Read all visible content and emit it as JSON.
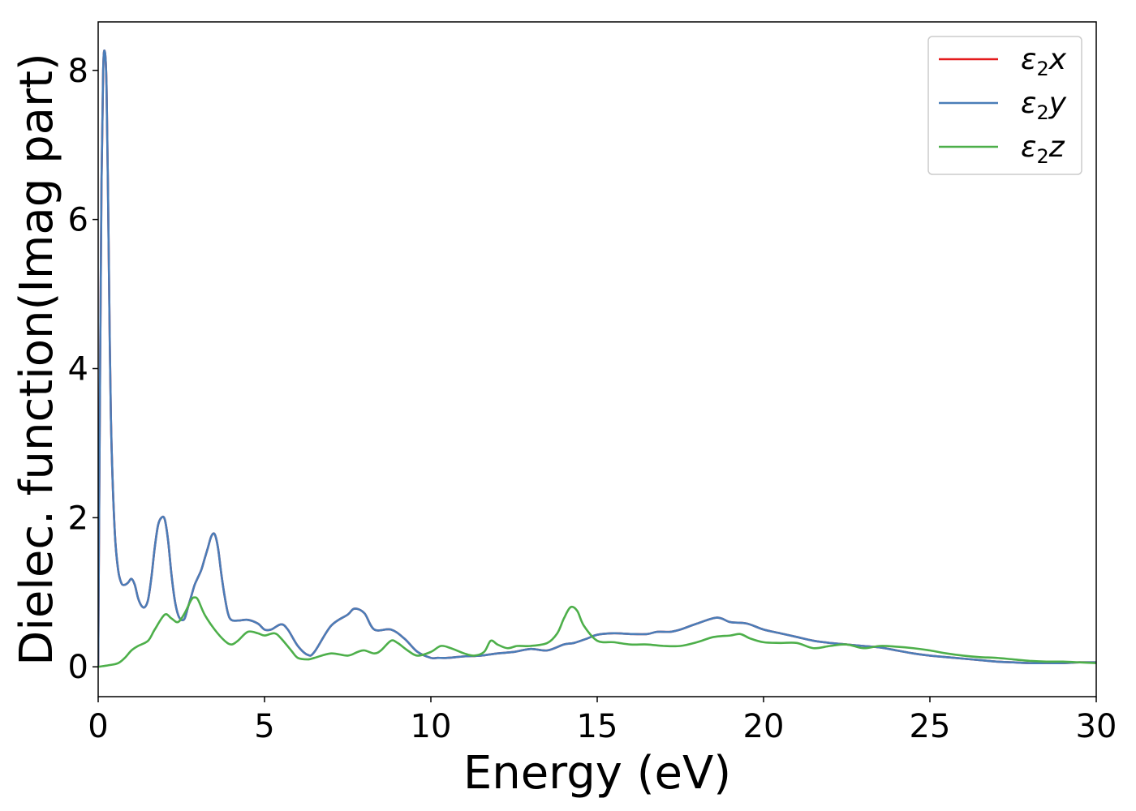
{
  "chart_data": {
    "type": "line",
    "title": "",
    "xlabel": "Energy (eV)",
    "ylabel": "Dielec. function(Imag part)",
    "xlim": [
      0,
      30
    ],
    "ylim": [
      -0.4,
      8.65
    ],
    "xticks": [
      0,
      5,
      10,
      15,
      20,
      25,
      30
    ],
    "yticks": [
      0,
      2,
      4,
      6,
      8
    ],
    "grid": false,
    "legend_position": "top-right",
    "series": [
      {
        "name": "ε2x",
        "legend_symbol": "ε",
        "legend_sub": "2",
        "legend_var": "x",
        "color": "#e41a1c",
        "x": [
          0,
          0.05,
          0.1,
          0.15,
          0.2,
          0.25,
          0.3,
          0.35,
          0.4,
          0.5,
          0.6,
          0.7,
          0.8,
          0.9,
          1.0,
          1.1,
          1.2,
          1.3,
          1.4,
          1.5,
          1.6,
          1.7,
          1.8,
          1.9,
          2.0,
          2.1,
          2.2,
          2.3,
          2.4,
          2.5,
          2.6,
          2.7,
          2.8,
          2.9,
          3.0,
          3.1,
          3.2,
          3.3,
          3.4,
          3.5,
          3.6,
          3.7,
          3.8,
          3.9,
          4.0,
          4.2,
          4.5,
          4.8,
          5.0,
          5.2,
          5.5,
          5.7,
          6.0,
          6.3,
          6.5,
          7.0,
          7.5,
          7.7,
          8.0,
          8.3,
          8.8,
          9.2,
          9.6,
          10.0,
          10.2,
          10.5,
          11.0,
          11.5,
          12.0,
          12.5,
          13.0,
          13.5,
          14.0,
          14.3,
          14.7,
          15.0,
          15.5,
          16.0,
          16.5,
          16.8,
          17.2,
          17.5,
          18.0,
          18.6,
          19.0,
          19.5,
          20.0,
          20.5,
          21.0,
          21.5,
          22.0,
          22.5,
          23.0,
          23.5,
          24.0,
          24.5,
          25.0,
          25.5,
          26.0,
          26.5,
          27.0,
          27.5,
          28.0,
          28.5,
          29.0,
          29.5,
          30.0
        ],
        "y": [
          0.0,
          3.5,
          6.5,
          8.0,
          8.25,
          7.8,
          6.2,
          4.3,
          3.0,
          1.8,
          1.3,
          1.12,
          1.1,
          1.13,
          1.18,
          1.1,
          0.92,
          0.82,
          0.8,
          0.9,
          1.2,
          1.6,
          1.9,
          2.0,
          1.98,
          1.7,
          1.25,
          0.9,
          0.7,
          0.63,
          0.65,
          0.8,
          0.95,
          1.1,
          1.2,
          1.3,
          1.45,
          1.6,
          1.75,
          1.78,
          1.6,
          1.25,
          0.95,
          0.72,
          0.63,
          0.62,
          0.63,
          0.58,
          0.5,
          0.5,
          0.57,
          0.5,
          0.28,
          0.16,
          0.2,
          0.55,
          0.7,
          0.78,
          0.72,
          0.5,
          0.5,
          0.38,
          0.2,
          0.12,
          0.12,
          0.12,
          0.14,
          0.15,
          0.18,
          0.2,
          0.24,
          0.22,
          0.3,
          0.32,
          0.38,
          0.43,
          0.45,
          0.44,
          0.44,
          0.47,
          0.47,
          0.5,
          0.58,
          0.66,
          0.6,
          0.58,
          0.5,
          0.45,
          0.4,
          0.35,
          0.32,
          0.3,
          0.28,
          0.26,
          0.22,
          0.18,
          0.15,
          0.13,
          0.11,
          0.09,
          0.07,
          0.06,
          0.05,
          0.05,
          0.05,
          0.06,
          0.06
        ]
      },
      {
        "name": "ε2y",
        "legend_symbol": "ε",
        "legend_sub": "2",
        "legend_var": "y",
        "color": "#4a7db8",
        "x": [
          0,
          0.05,
          0.1,
          0.15,
          0.2,
          0.25,
          0.3,
          0.35,
          0.4,
          0.5,
          0.6,
          0.7,
          0.8,
          0.9,
          1.0,
          1.1,
          1.2,
          1.3,
          1.4,
          1.5,
          1.6,
          1.7,
          1.8,
          1.9,
          2.0,
          2.1,
          2.2,
          2.3,
          2.4,
          2.5,
          2.6,
          2.7,
          2.8,
          2.9,
          3.0,
          3.1,
          3.2,
          3.3,
          3.4,
          3.5,
          3.6,
          3.7,
          3.8,
          3.9,
          4.0,
          4.2,
          4.5,
          4.8,
          5.0,
          5.2,
          5.5,
          5.7,
          6.0,
          6.3,
          6.5,
          7.0,
          7.5,
          7.7,
          8.0,
          8.3,
          8.8,
          9.2,
          9.6,
          10.0,
          10.2,
          10.5,
          11.0,
          11.5,
          12.0,
          12.5,
          13.0,
          13.5,
          14.0,
          14.3,
          14.7,
          15.0,
          15.5,
          16.0,
          16.5,
          16.8,
          17.2,
          17.5,
          18.0,
          18.6,
          19.0,
          19.5,
          20.0,
          20.5,
          21.0,
          21.5,
          22.0,
          22.5,
          23.0,
          23.5,
          24.0,
          24.5,
          25.0,
          25.5,
          26.0,
          26.5,
          27.0,
          27.5,
          28.0,
          28.5,
          29.0,
          29.5,
          30.0
        ],
        "y": [
          0.0,
          3.5,
          6.5,
          8.0,
          8.25,
          7.8,
          6.2,
          4.3,
          3.0,
          1.8,
          1.3,
          1.12,
          1.1,
          1.13,
          1.18,
          1.1,
          0.92,
          0.82,
          0.8,
          0.9,
          1.2,
          1.6,
          1.9,
          2.0,
          1.98,
          1.7,
          1.25,
          0.9,
          0.7,
          0.63,
          0.65,
          0.8,
          0.95,
          1.1,
          1.2,
          1.3,
          1.45,
          1.6,
          1.75,
          1.78,
          1.6,
          1.25,
          0.95,
          0.72,
          0.63,
          0.62,
          0.63,
          0.58,
          0.5,
          0.5,
          0.57,
          0.5,
          0.28,
          0.16,
          0.2,
          0.55,
          0.7,
          0.78,
          0.72,
          0.5,
          0.5,
          0.38,
          0.2,
          0.12,
          0.12,
          0.12,
          0.14,
          0.15,
          0.18,
          0.2,
          0.24,
          0.22,
          0.3,
          0.32,
          0.38,
          0.43,
          0.45,
          0.44,
          0.44,
          0.47,
          0.47,
          0.5,
          0.58,
          0.66,
          0.6,
          0.58,
          0.5,
          0.45,
          0.4,
          0.35,
          0.32,
          0.3,
          0.28,
          0.26,
          0.22,
          0.18,
          0.15,
          0.13,
          0.11,
          0.09,
          0.07,
          0.06,
          0.05,
          0.05,
          0.05,
          0.06,
          0.06
        ]
      },
      {
        "name": "ε2z",
        "legend_symbol": "ε",
        "legend_sub": "2",
        "legend_var": "z",
        "color": "#4daf4a",
        "x": [
          0,
          0.3,
          0.6,
          0.8,
          1.0,
          1.2,
          1.5,
          1.7,
          2.0,
          2.2,
          2.4,
          2.6,
          2.8,
          2.9,
          3.0,
          3.2,
          3.5,
          3.8,
          4.0,
          4.2,
          4.5,
          4.8,
          5.0,
          5.3,
          5.5,
          5.8,
          6.0,
          6.3,
          6.5,
          7.0,
          7.5,
          7.8,
          8.0,
          8.3,
          8.5,
          8.8,
          9.0,
          9.3,
          9.6,
          10.0,
          10.3,
          10.6,
          11.0,
          11.3,
          11.6,
          11.8,
          12.0,
          12.3,
          12.6,
          13.0,
          13.5,
          13.8,
          14.0,
          14.2,
          14.4,
          14.6,
          15.0,
          15.5,
          16.0,
          16.5,
          17.0,
          17.5,
          18.0,
          18.5,
          19.0,
          19.3,
          19.6,
          20.0,
          20.5,
          21.0,
          21.5,
          22.0,
          22.5,
          23.0,
          23.5,
          24.0,
          24.5,
          25.0,
          25.5,
          26.0,
          26.5,
          27.0,
          27.5,
          28.0,
          28.5,
          29.0,
          29.5,
          30.0
        ],
        "y": [
          0.0,
          0.02,
          0.05,
          0.12,
          0.22,
          0.28,
          0.35,
          0.5,
          0.7,
          0.65,
          0.6,
          0.72,
          0.9,
          0.93,
          0.9,
          0.7,
          0.5,
          0.35,
          0.3,
          0.35,
          0.47,
          0.45,
          0.42,
          0.45,
          0.38,
          0.22,
          0.12,
          0.1,
          0.12,
          0.18,
          0.15,
          0.2,
          0.22,
          0.18,
          0.22,
          0.35,
          0.32,
          0.22,
          0.15,
          0.2,
          0.28,
          0.25,
          0.18,
          0.15,
          0.2,
          0.35,
          0.3,
          0.25,
          0.28,
          0.28,
          0.32,
          0.45,
          0.65,
          0.8,
          0.75,
          0.55,
          0.35,
          0.33,
          0.3,
          0.3,
          0.28,
          0.28,
          0.33,
          0.4,
          0.42,
          0.44,
          0.38,
          0.33,
          0.32,
          0.32,
          0.25,
          0.28,
          0.3,
          0.25,
          0.28,
          0.27,
          0.25,
          0.22,
          0.18,
          0.15,
          0.13,
          0.12,
          0.1,
          0.08,
          0.07,
          0.07,
          0.06,
          0.05
        ]
      }
    ]
  }
}
